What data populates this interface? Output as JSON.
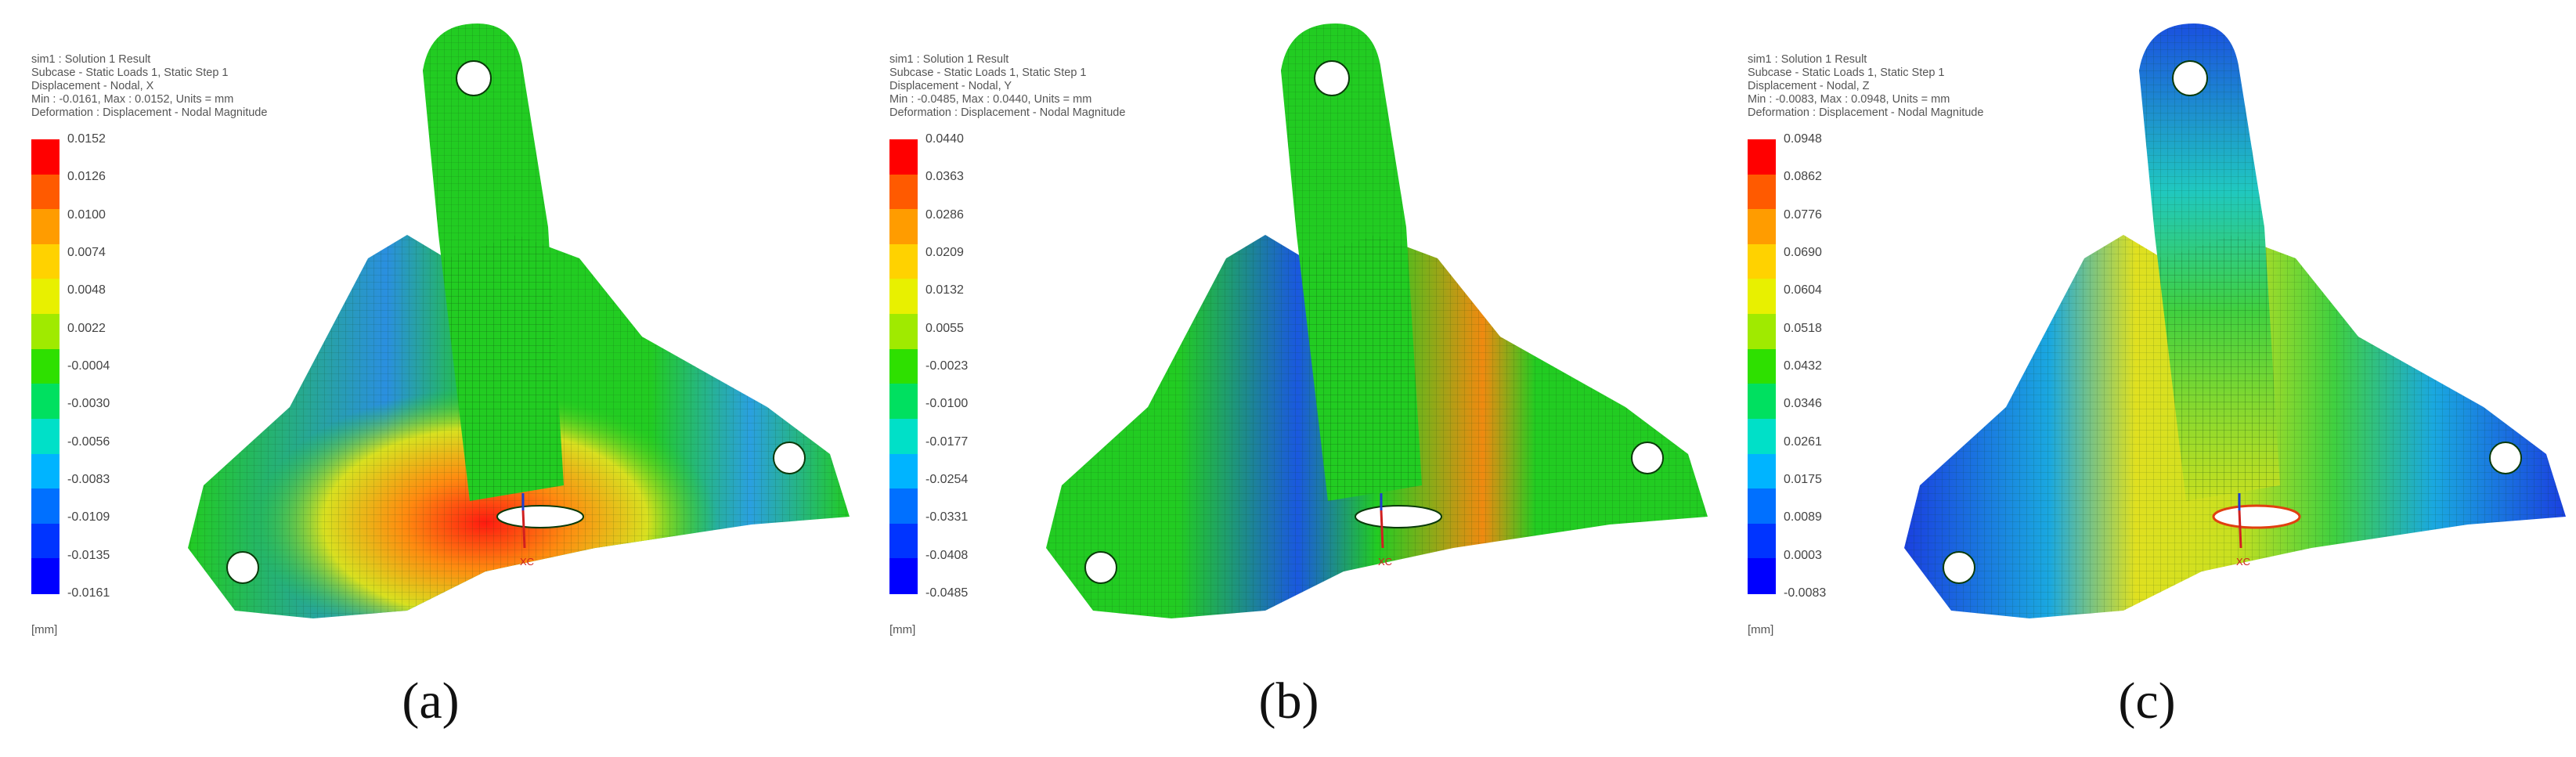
{
  "panels": [
    {
      "id": "a",
      "caption": "(a)",
      "info": [
        "sim1 : Solution 1 Result",
        "Subcase - Static Loads 1, Static Step 1",
        "Displacement - Nodal, X",
        "Min : -0.0161, Max : 0.0152, Units = mm",
        "Deformation : Displacement - Nodal Magnitude"
      ],
      "legend_ticks": [
        "0.0152",
        "0.0126",
        "0.0100",
        "0.0074",
        "0.0048",
        "0.0022",
        "-0.0004",
        "-0.0030",
        "-0.0056",
        "-0.0083",
        "-0.0109",
        "-0.0135",
        "-0.0161"
      ],
      "unit": "[mm]",
      "axis_label": "XC"
    },
    {
      "id": "b",
      "caption": "(b)",
      "info": [
        "sim1 : Solution 1 Result",
        "Subcase - Static Loads 1, Static Step 1",
        "Displacement - Nodal, Y",
        "Min : -0.0485, Max : 0.0440, Units = mm",
        "Deformation : Displacement - Nodal Magnitude"
      ],
      "legend_ticks": [
        "0.0440",
        "0.0363",
        "0.0286",
        "0.0209",
        "0.0132",
        "0.0055",
        "-0.0023",
        "-0.0100",
        "-0.0177",
        "-0.0254",
        "-0.0331",
        "-0.0408",
        "-0.0485"
      ],
      "unit": "[mm]",
      "axis_label": "XC"
    },
    {
      "id": "c",
      "caption": "(c)",
      "info": [
        "sim1 : Solution 1 Result",
        "Subcase - Static Loads 1, Static Step 1",
        "Displacement - Nodal, Z",
        "Min : -0.0083, Max : 0.0948, Units = mm",
        "Deformation : Displacement - Nodal Magnitude"
      ],
      "legend_ticks": [
        "0.0948",
        "0.0862",
        "0.0776",
        "0.0690",
        "0.0604",
        "0.0518",
        "0.0432",
        "0.0346",
        "0.0261",
        "0.0175",
        "0.0089",
        "0.0003",
        "-0.0083"
      ],
      "unit": "[mm]",
      "axis_label": "XC"
    }
  ],
  "colors": {
    "legend_top_to_bottom": [
      "#ff0000",
      "#ff5a00",
      "#ff9c00",
      "#ffd200",
      "#e8f000",
      "#a0ea00",
      "#2ee000",
      "#00e060",
      "#00e0c8",
      "#00b4ff",
      "#0070ff",
      "#0034ff",
      "#0000ff"
    ],
    "mesh_green": "#22cc22",
    "mesh_blue": "#1560d8",
    "mesh_red": "#e82010",
    "mesh_yellow": "#e6dc20"
  }
}
